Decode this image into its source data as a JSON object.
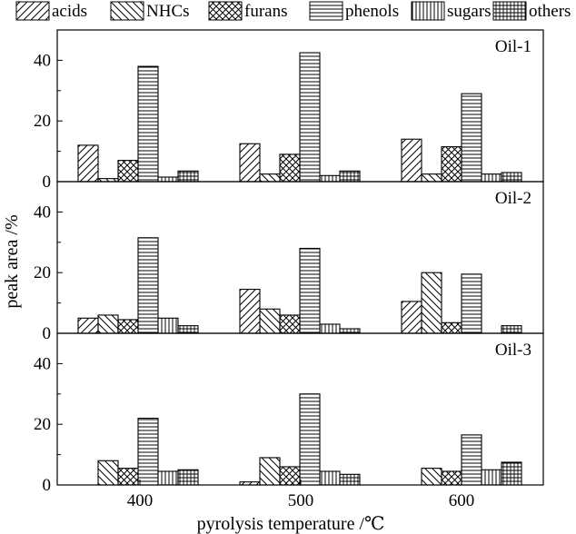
{
  "chart_data": {
    "type": "bar",
    "layout": "three stacked panels, shared x-axis",
    "xlabel": "pyrolysis temperature /℃",
    "ylabel": "peak area /%",
    "categories": [
      "400",
      "500",
      "600"
    ],
    "ylim": [
      0,
      50
    ],
    "yticks": [
      "0",
      "20",
      "40"
    ],
    "legend": {
      "position": "top",
      "entries": [
        {
          "name": "acids",
          "pattern": "diag-right"
        },
        {
          "name": "NHCs",
          "pattern": "diag-left"
        },
        {
          "name": "furans",
          "pattern": "crosshatch"
        },
        {
          "name": "phenols",
          "pattern": "horizontal"
        },
        {
          "name": "sugars",
          "pattern": "vertical"
        },
        {
          "name": "others",
          "pattern": "grid"
        }
      ]
    },
    "panels": [
      {
        "label": "Oil-1",
        "series": [
          {
            "name": "acids",
            "values": [
              12,
              12.5,
              14
            ]
          },
          {
            "name": "NHCs",
            "values": [
              1,
              2.5,
              2.5
            ]
          },
          {
            "name": "furans",
            "values": [
              7,
              9,
              11.5
            ]
          },
          {
            "name": "phenols",
            "values": [
              38,
              42.5,
              29
            ]
          },
          {
            "name": "sugars",
            "values": [
              1.5,
              2,
              2.5
            ]
          },
          {
            "name": "others",
            "values": [
              3.5,
              3.5,
              3
            ]
          }
        ]
      },
      {
        "label": "Oil-2",
        "series": [
          {
            "name": "acids",
            "values": [
              5,
              14.5,
              10.5
            ]
          },
          {
            "name": "NHCs",
            "values": [
              6,
              8,
              20
            ]
          },
          {
            "name": "furans",
            "values": [
              4.5,
              6,
              3.5
            ]
          },
          {
            "name": "phenols",
            "values": [
              31.5,
              28,
              19.5
            ]
          },
          {
            "name": "sugars",
            "values": [
              5,
              3,
              0
            ]
          },
          {
            "name": "others",
            "values": [
              2.5,
              1.5,
              2.5
            ]
          }
        ]
      },
      {
        "label": "Oil-3",
        "series": [
          {
            "name": "acids",
            "values": [
              0,
              1,
              0
            ]
          },
          {
            "name": "NHCs",
            "values": [
              8,
              9,
              5.5
            ]
          },
          {
            "name": "furans",
            "values": [
              5.5,
              6,
              4.5
            ]
          },
          {
            "name": "phenols",
            "values": [
              22,
              30,
              16.5
            ]
          },
          {
            "name": "sugars",
            "values": [
              4.5,
              4.5,
              5
            ]
          },
          {
            "name": "others",
            "values": [
              5,
              3.5,
              7.5
            ]
          }
        ]
      }
    ]
  }
}
